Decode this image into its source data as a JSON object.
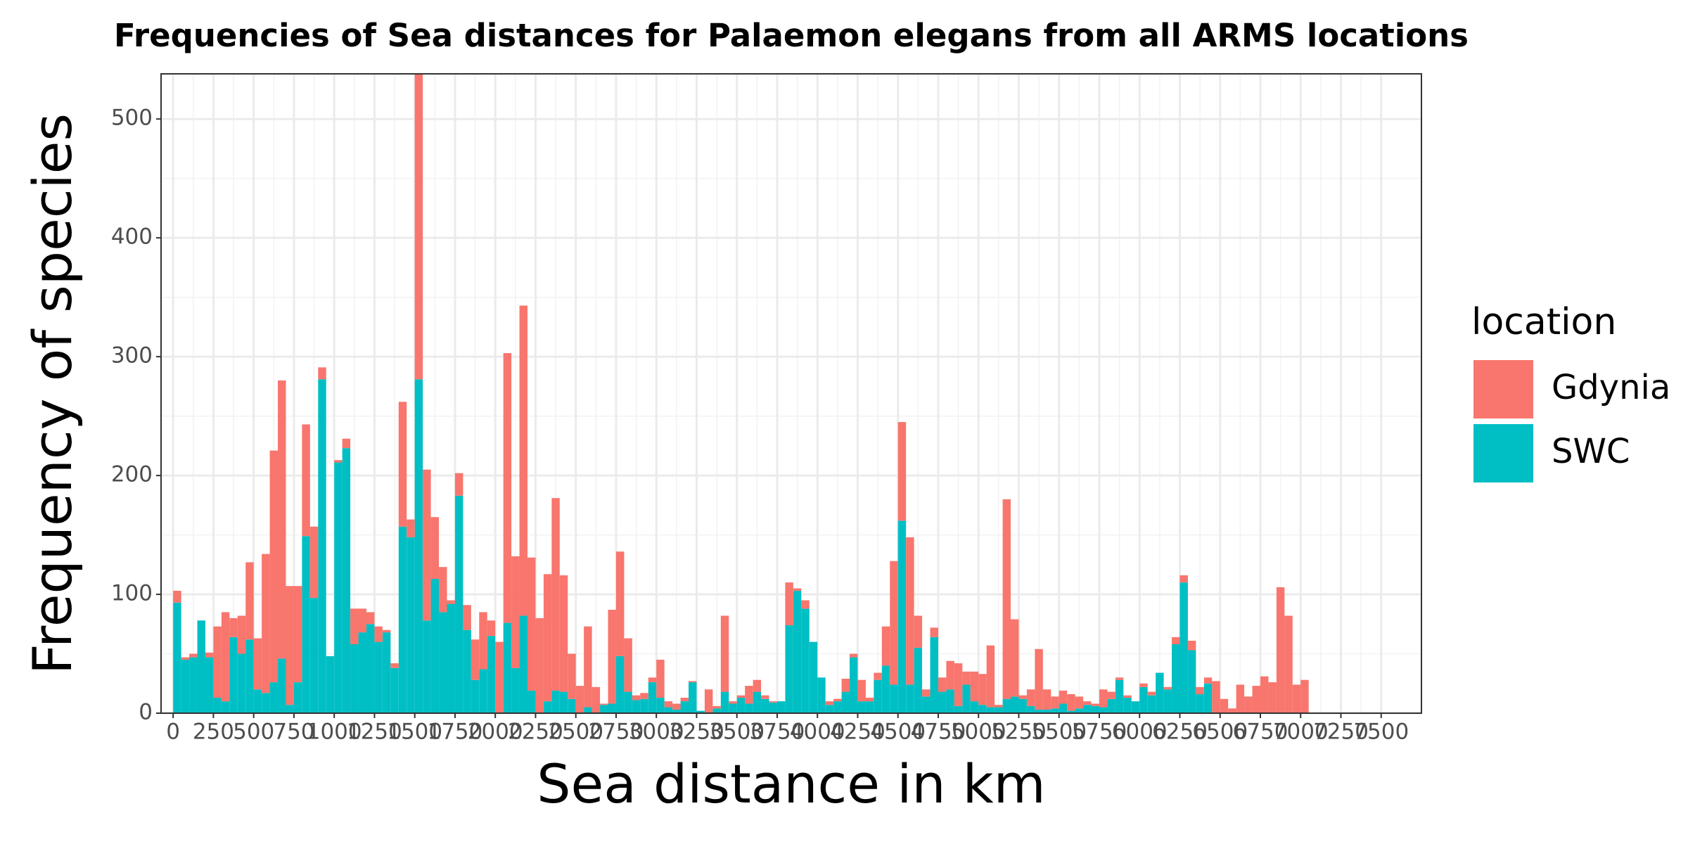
{
  "chart_data": {
    "type": "histogram",
    "stacked": true,
    "title": "Frequencies of Sea distances for Palaemon elegans from all ARMS locations",
    "xlabel": "Sea distance in km",
    "ylabel": "Frequency of species",
    "legend_title": "location",
    "legend": "right",
    "grid": true,
    "bins": [
      0,
      50,
      100,
      150,
      200,
      250,
      300,
      350,
      400,
      450,
      500,
      550,
      600,
      650,
      700,
      750,
      800,
      850,
      900,
      950,
      1000,
      1050,
      1100,
      1150,
      1200,
      1250,
      1300,
      1350,
      1400,
      1450,
      1500,
      1550,
      1600,
      1650,
      1700,
      1750,
      1800,
      1850,
      1900,
      1950,
      2000,
      2050,
      2100,
      2150,
      2200,
      2250,
      2300,
      2350,
      2400,
      2450,
      2500,
      2550,
      2600,
      2650,
      2700,
      2750,
      2800,
      2850,
      2900,
      2950,
      3000,
      3050,
      3100,
      3150,
      3200,
      3250,
      3300,
      3350,
      3400,
      3450,
      3500,
      3550,
      3600,
      3650,
      3700,
      3750,
      3800,
      3850,
      3900,
      3950,
      4000,
      4050,
      4100,
      4150,
      4200,
      4250,
      4300,
      4350,
      4400,
      4450,
      4500,
      4550,
      4600,
      4650,
      4700,
      4750,
      4800,
      4850,
      4900,
      4950,
      5000,
      5050,
      5100,
      5150,
      5200,
      5250,
      5300,
      5350,
      5400,
      5450,
      5500,
      5550,
      5600,
      5650,
      5700,
      5750,
      5800,
      5850,
      5900,
      5950,
      6000,
      6050,
      6100,
      6150,
      6200,
      6250,
      6300,
      6350,
      6400,
      6450,
      6500,
      6550,
      6600,
      6650,
      6700,
      6750,
      6800,
      6850,
      6900,
      6950,
      7000,
      7050
    ],
    "series": [
      {
        "name": "Gdynia",
        "color": "#F8766D",
        "values": [
          10,
          2,
          3,
          0,
          4,
          60,
          75,
          16,
          32,
          65,
          43,
          117,
          195,
          234,
          100,
          81,
          94,
          60,
          10,
          0,
          2,
          8,
          30,
          20,
          10,
          13,
          2,
          4,
          105,
          15,
          257,
          127,
          52,
          38,
          3,
          19,
          21,
          34,
          48,
          13,
          60,
          227,
          94,
          261,
          112,
          80,
          107,
          162,
          98,
          38,
          23,
          68,
          22,
          1,
          79,
          88,
          45,
          4,
          5,
          4,
          32,
          5,
          5,
          3,
          1,
          0,
          20,
          2,
          64,
          2,
          2,
          15,
          10,
          3,
          1,
          0,
          36,
          2,
          7,
          0,
          0,
          3,
          2,
          11,
          3,
          18,
          3,
          6,
          33,
          104,
          83,
          124,
          27,
          6,
          8,
          12,
          24,
          36,
          11,
          25,
          26,
          52,
          2,
          168,
          65,
          3,
          14,
          51,
          17,
          10,
          11,
          14,
          10,
          3,
          2,
          15,
          6,
          2,
          2,
          0,
          3,
          3,
          0,
          2,
          6,
          6,
          8,
          6,
          5,
          27,
          12,
          4,
          24,
          14,
          23,
          31,
          26,
          106,
          82,
          24,
          28
        ]
      },
      {
        "name": "SWC",
        "color": "#00BFC4",
        "values": [
          93,
          45,
          47,
          78,
          47,
          13,
          10,
          64,
          50,
          62,
          20,
          17,
          26,
          46,
          7,
          26,
          149,
          97,
          281,
          48,
          211,
          223,
          58,
          68,
          75,
          60,
          68,
          38,
          157,
          148,
          281,
          78,
          113,
          85,
          92,
          183,
          70,
          28,
          37,
          65,
          0,
          76,
          38,
          82,
          19,
          0,
          10,
          19,
          18,
          12,
          0,
          5,
          0,
          7,
          8,
          48,
          18,
          11,
          12,
          26,
          13,
          5,
          3,
          10,
          26,
          2,
          0,
          4,
          18,
          8,
          13,
          8,
          18,
          12,
          9,
          10,
          74,
          103,
          88,
          60,
          30,
          7,
          10,
          18,
          47,
          10,
          10,
          28,
          40,
          24,
          162,
          24,
          55,
          14,
          64,
          18,
          20,
          6,
          24,
          10,
          7,
          5,
          5,
          12,
          14,
          12,
          6,
          3,
          3,
          4,
          8,
          2,
          4,
          7,
          6,
          5,
          12,
          28,
          13,
          10,
          22,
          15,
          34,
          20,
          58,
          110,
          53,
          16,
          25,
          0,
          0,
          0,
          0,
          0,
          0,
          0,
          0,
          0,
          0,
          0,
          0
        ]
      }
    ],
    "xlim": [
      -75,
      7750
    ],
    "xticks": [
      0,
      250,
      500,
      750,
      1000,
      1250,
      1500,
      1750,
      2000,
      2250,
      2500,
      2750,
      3000,
      3250,
      3500,
      3750,
      4000,
      4250,
      4500,
      4750,
      5000,
      5250,
      5500,
      5750,
      6000,
      6250,
      6500,
      6750,
      7000,
      7250,
      7500
    ],
    "ylim": [
      0,
      538
    ],
    "yticks": [
      0,
      100,
      200,
      300,
      400,
      500
    ]
  }
}
